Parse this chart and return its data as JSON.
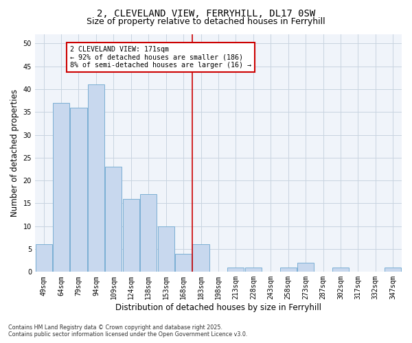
{
  "title_line1": "2, CLEVELAND VIEW, FERRYHILL, DL17 0SW",
  "title_line2": "Size of property relative to detached houses in Ferryhill",
  "xlabel": "Distribution of detached houses by size in Ferryhill",
  "ylabel": "Number of detached properties",
  "categories": [
    "49sqm",
    "64sqm",
    "79sqm",
    "94sqm",
    "109sqm",
    "124sqm",
    "138sqm",
    "153sqm",
    "168sqm",
    "183sqm",
    "198sqm",
    "213sqm",
    "228sqm",
    "243sqm",
    "258sqm",
    "273sqm",
    "287sqm",
    "302sqm",
    "317sqm",
    "332sqm",
    "347sqm"
  ],
  "values": [
    6,
    37,
    36,
    41,
    23,
    16,
    17,
    10,
    4,
    6,
    0,
    1,
    1,
    0,
    1,
    2,
    0,
    1,
    0,
    0,
    1
  ],
  "bar_color": "#c8d8ee",
  "bar_edge_color": "#7bafd4",
  "grid_color": "#c8d4e0",
  "vline_x": 8.5,
  "vline_color": "#cc0000",
  "annotation_text": "2 CLEVELAND VIEW: 171sqm\n← 92% of detached houses are smaller (186)\n8% of semi-detached houses are larger (16) →",
  "annotation_box_color": "#ffffff",
  "annotation_box_edge": "#cc0000",
  "ylim": [
    0,
    52
  ],
  "yticks": [
    0,
    5,
    10,
    15,
    20,
    25,
    30,
    35,
    40,
    45,
    50
  ],
  "footer": "Contains HM Land Registry data © Crown copyright and database right 2025.\nContains public sector information licensed under the Open Government Licence v3.0.",
  "bg_color": "#ffffff",
  "plot_bg_color": "#f0f4fa",
  "title_fontsize": 10,
  "subtitle_fontsize": 9,
  "tick_fontsize": 7,
  "label_fontsize": 8.5
}
